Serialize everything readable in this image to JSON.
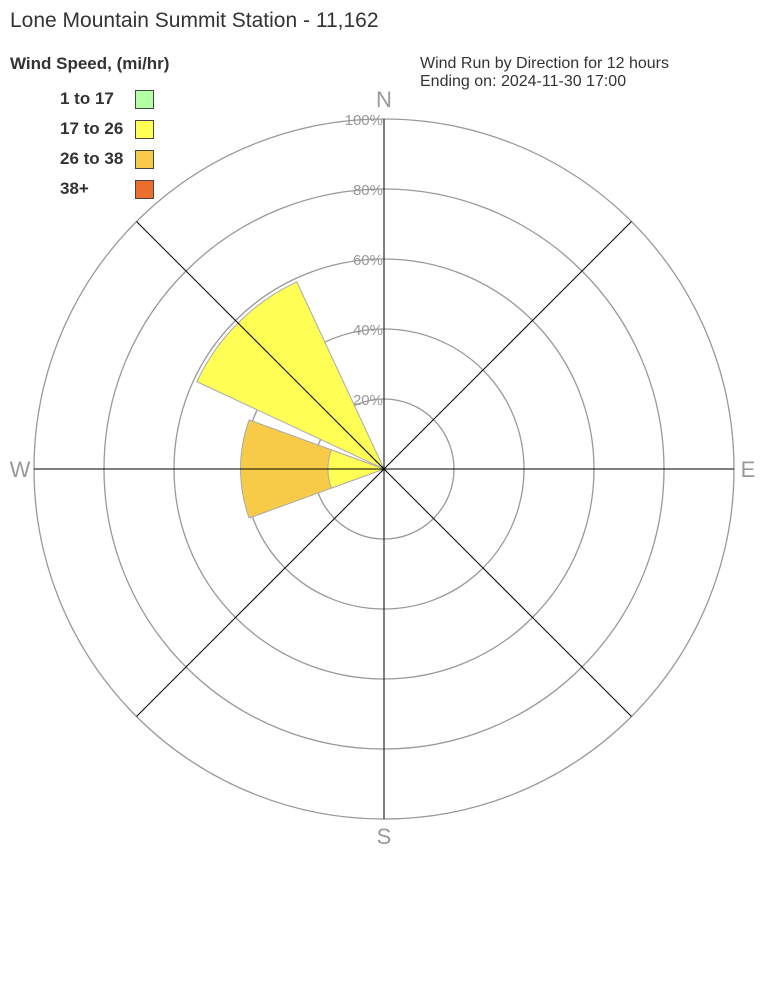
{
  "title": "Lone Mountain Summit Station - 11,162",
  "legend_title": "Wind Speed, (mi/hr)",
  "subtitle_line1": "Wind Run by Direction for 12 hours",
  "subtitle_line2": "Ending on: 2024-11-30 17:00",
  "chart_data": {
    "type": "wind-rose",
    "compass_labels": [
      "N",
      "E",
      "S",
      "W"
    ],
    "radial_ticks": [
      "20%",
      "40%",
      "60%",
      "80%",
      "100%"
    ],
    "rmax": 100,
    "bins": [
      {
        "name": "1 to 17",
        "color": "#b3ffa3"
      },
      {
        "name": "17 to 26",
        "color": "#ffff55"
      },
      {
        "name": "26 to 38",
        "color": "#f7cb47"
      },
      {
        "name": "38+",
        "color": "#ec6e2c"
      }
    ],
    "directions": [
      "N",
      "NE",
      "E",
      "SE",
      "S",
      "SW",
      "W",
      "NW"
    ],
    "values": [
      [
        0,
        0,
        0,
        0
      ],
      [
        0,
        0,
        0,
        0
      ],
      [
        0,
        0,
        0,
        0
      ],
      [
        0,
        0,
        0,
        0
      ],
      [
        0,
        0,
        0,
        0
      ],
      [
        0,
        0,
        0,
        0
      ],
      [
        0,
        16,
        25,
        0
      ],
      [
        0,
        59,
        0,
        0
      ]
    ]
  }
}
